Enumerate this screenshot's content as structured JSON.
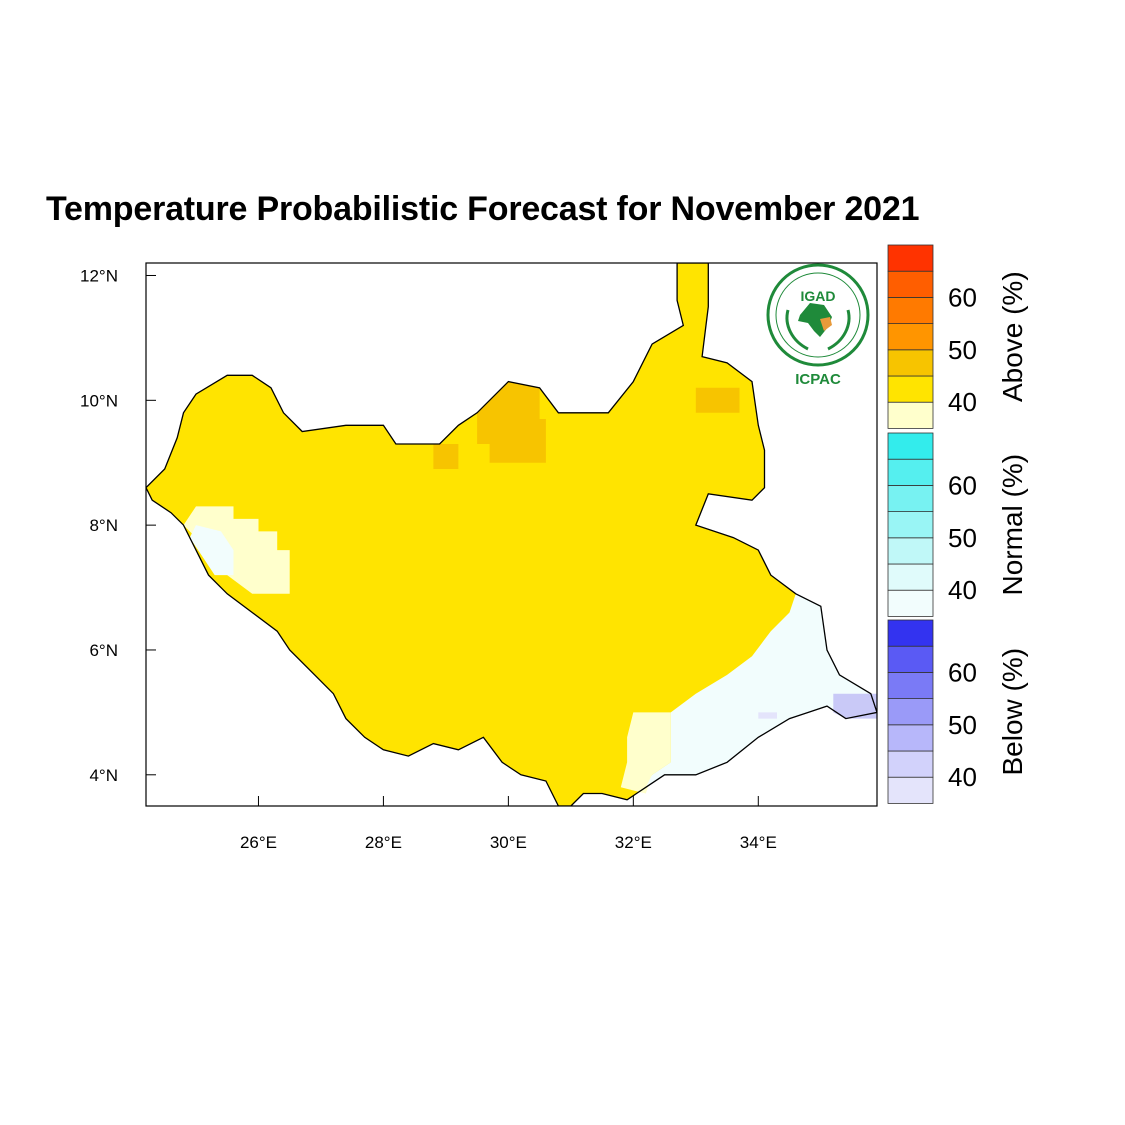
{
  "title": "Temperature Probabilistic Forecast for November 2021",
  "map": {
    "region": "South Sudan",
    "lon_range": [
      24.2,
      35.9
    ],
    "lat_range": [
      3.5,
      12.2
    ],
    "x_ticks": [
      {
        "value": 26,
        "label": "26°E"
      },
      {
        "value": 28,
        "label": "28°E"
      },
      {
        "value": 30,
        "label": "30°E"
      },
      {
        "value": 32,
        "label": "32°E"
      },
      {
        "value": 34,
        "label": "34°E"
      }
    ],
    "y_ticks": [
      {
        "value": 12,
        "label": "12°N"
      },
      {
        "value": 10,
        "label": "10°N"
      },
      {
        "value": 8,
        "label": "8°N"
      },
      {
        "value": 6,
        "label": "6°N"
      },
      {
        "value": 4,
        "label": "4°N"
      }
    ],
    "colors": {
      "above_40": "#ffe400",
      "above_45": "#f7c400",
      "above_low": "#ffffcc",
      "normal_low": "#f2fdfd",
      "below_low": "#e4e4fb",
      "below_mid": "#c9c9f7",
      "border": "#000000"
    },
    "country_outline": [
      [
        24.2,
        8.6
      ],
      [
        24.5,
        8.9
      ],
      [
        24.7,
        9.4
      ],
      [
        24.8,
        9.8
      ],
      [
        25.0,
        10.1
      ],
      [
        25.5,
        10.4
      ],
      [
        25.9,
        10.4
      ],
      [
        26.2,
        10.2
      ],
      [
        26.4,
        9.8
      ],
      [
        26.7,
        9.5
      ],
      [
        27.4,
        9.6
      ],
      [
        28.0,
        9.6
      ],
      [
        28.2,
        9.3
      ],
      [
        28.9,
        9.3
      ],
      [
        29.2,
        9.6
      ],
      [
        29.5,
        9.8
      ],
      [
        30.0,
        10.3
      ],
      [
        30.5,
        10.2
      ],
      [
        30.8,
        9.8
      ],
      [
        31.2,
        9.8
      ],
      [
        31.6,
        9.8
      ],
      [
        32.0,
        10.3
      ],
      [
        32.3,
        10.9
      ],
      [
        32.8,
        11.2
      ],
      [
        32.7,
        11.6
      ],
      [
        32.7,
        12.2
      ],
      [
        33.2,
        12.2
      ],
      [
        33.2,
        11.5
      ],
      [
        33.1,
        10.7
      ],
      [
        33.5,
        10.6
      ],
      [
        33.9,
        10.3
      ],
      [
        34.0,
        9.6
      ],
      [
        34.1,
        9.2
      ],
      [
        34.1,
        8.6
      ],
      [
        33.9,
        8.4
      ],
      [
        33.2,
        8.5
      ],
      [
        33.0,
        8.0
      ],
      [
        33.6,
        7.8
      ],
      [
        34.0,
        7.6
      ],
      [
        34.2,
        7.2
      ],
      [
        34.6,
        6.9
      ],
      [
        35.0,
        6.7
      ],
      [
        35.1,
        6.0
      ],
      [
        35.3,
        5.6
      ],
      [
        35.8,
        5.3
      ],
      [
        35.9,
        5.0
      ],
      [
        35.4,
        4.9
      ],
      [
        35.1,
        5.1
      ],
      [
        34.8,
        5.0
      ],
      [
        34.5,
        4.9
      ],
      [
        34.0,
        4.6
      ],
      [
        33.5,
        4.2
      ],
      [
        33.0,
        4.0
      ],
      [
        32.5,
        4.0
      ],
      [
        32.2,
        3.8
      ],
      [
        31.9,
        3.6
      ],
      [
        31.5,
        3.7
      ],
      [
        31.2,
        3.7
      ],
      [
        31.0,
        3.5
      ],
      [
        30.8,
        3.5
      ],
      [
        30.6,
        3.9
      ],
      [
        30.2,
        4.0
      ],
      [
        29.9,
        4.2
      ],
      [
        29.6,
        4.6
      ],
      [
        29.2,
        4.4
      ],
      [
        28.8,
        4.5
      ],
      [
        28.4,
        4.3
      ],
      [
        28.0,
        4.4
      ],
      [
        27.7,
        4.6
      ],
      [
        27.4,
        4.9
      ],
      [
        27.2,
        5.3
      ],
      [
        26.9,
        5.6
      ],
      [
        26.5,
        6.0
      ],
      [
        26.3,
        6.3
      ],
      [
        25.9,
        6.6
      ],
      [
        25.5,
        6.9
      ],
      [
        25.2,
        7.2
      ],
      [
        25.0,
        7.6
      ],
      [
        24.8,
        8.0
      ],
      [
        24.6,
        8.2
      ],
      [
        24.3,
        8.4
      ]
    ],
    "zones": [
      {
        "category": "above_45",
        "polygon": [
          [
            29.5,
            9.8
          ],
          [
            30.0,
            10.3
          ],
          [
            30.5,
            10.2
          ],
          [
            30.5,
            9.7
          ],
          [
            30.6,
            9.7
          ],
          [
            30.6,
            9.0
          ],
          [
            29.7,
            9.0
          ],
          [
            29.7,
            9.3
          ],
          [
            29.5,
            9.3
          ]
        ]
      },
      {
        "category": "above_45",
        "polygon": [
          [
            33.0,
            10.2
          ],
          [
            33.7,
            10.2
          ],
          [
            33.7,
            9.8
          ],
          [
            33.0,
            9.8
          ]
        ]
      },
      {
        "category": "above_45",
        "polygon": [
          [
            28.8,
            9.3
          ],
          [
            29.2,
            9.3
          ],
          [
            29.2,
            8.9
          ],
          [
            28.8,
            8.9
          ]
        ]
      },
      {
        "category": "above_low",
        "polygon": [
          [
            25.0,
            8.3
          ],
          [
            25.6,
            8.3
          ],
          [
            25.6,
            8.1
          ],
          [
            26.0,
            8.1
          ],
          [
            26.0,
            7.9
          ],
          [
            26.3,
            7.9
          ],
          [
            26.3,
            7.6
          ],
          [
            26.5,
            7.6
          ],
          [
            26.5,
            6.9
          ],
          [
            25.9,
            6.9
          ],
          [
            25.5,
            7.2
          ],
          [
            25.2,
            7.5
          ],
          [
            25.0,
            7.8
          ],
          [
            24.8,
            8.0
          ]
        ]
      },
      {
        "category": "normal_low",
        "polygon": [
          [
            25.0,
            8.0
          ],
          [
            25.4,
            7.9
          ],
          [
            25.6,
            7.6
          ],
          [
            25.6,
            7.2
          ],
          [
            25.3,
            7.2
          ],
          [
            25.1,
            7.5
          ],
          [
            24.9,
            7.8
          ]
        ]
      },
      {
        "category": "above_low",
        "polygon": [
          [
            32.0,
            5.0
          ],
          [
            32.6,
            5.0
          ],
          [
            32.6,
            4.2
          ],
          [
            32.3,
            4.0
          ],
          [
            32.2,
            3.7
          ],
          [
            31.8,
            3.8
          ],
          [
            31.9,
            4.2
          ],
          [
            31.9,
            4.6
          ]
        ]
      },
      {
        "category": "normal_low",
        "polygon": [
          [
            32.6,
            5.0
          ],
          [
            33.0,
            5.3
          ],
          [
            33.5,
            5.6
          ],
          [
            33.9,
            5.9
          ],
          [
            34.2,
            6.3
          ],
          [
            34.5,
            6.6
          ],
          [
            34.6,
            6.9
          ],
          [
            35.0,
            6.7
          ],
          [
            35.1,
            6.0
          ],
          [
            35.3,
            5.6
          ],
          [
            35.8,
            5.3
          ],
          [
            35.9,
            5.0
          ],
          [
            35.4,
            4.9
          ],
          [
            35.1,
            5.1
          ],
          [
            34.8,
            5.0
          ],
          [
            34.5,
            4.9
          ],
          [
            34.0,
            4.6
          ],
          [
            33.5,
            4.2
          ],
          [
            33.0,
            4.0
          ],
          [
            32.5,
            4.0
          ],
          [
            32.2,
            3.8
          ],
          [
            32.3,
            4.0
          ],
          [
            32.6,
            4.2
          ]
        ]
      },
      {
        "category": "below_mid",
        "polygon": [
          [
            35.2,
            5.3
          ],
          [
            35.9,
            5.3
          ],
          [
            35.9,
            4.9
          ],
          [
            35.4,
            4.9
          ],
          [
            35.2,
            5.0
          ]
        ]
      },
      {
        "category": "below_low",
        "polygon": [
          [
            34.0,
            5.0
          ],
          [
            34.3,
            5.0
          ],
          [
            34.3,
            4.9
          ],
          [
            34.0,
            4.9
          ]
        ]
      }
    ],
    "logo": {
      "name": "igad-icpac-logo",
      "top_text": "IGAD",
      "bottom_text": "ICPAC"
    }
  },
  "colorbar": {
    "groups": [
      {
        "title": "Above (%)",
        "labels": [
          "60",
          "50",
          "40"
        ],
        "colors": [
          "#ffffcc",
          "#ffe400",
          "#f7c400",
          "#ff9500",
          "#ff7a00",
          "#ff5e00",
          "#ff3300"
        ]
      },
      {
        "title": "Normal (%)",
        "labels": [
          "60",
          "50",
          "40"
        ],
        "colors": [
          "#f2fdfd",
          "#e0fbfb",
          "#c0f8f8",
          "#99f5f5",
          "#77f2f2",
          "#55efef",
          "#33ecec"
        ]
      },
      {
        "title": "Below (%)",
        "labels": [
          "60",
          "50",
          "40"
        ],
        "colors": [
          "#e4e4fb",
          "#d2d2fb",
          "#b7b7fa",
          "#9a9af8",
          "#7a7af6",
          "#5a5af4",
          "#3333f0"
        ]
      }
    ]
  }
}
